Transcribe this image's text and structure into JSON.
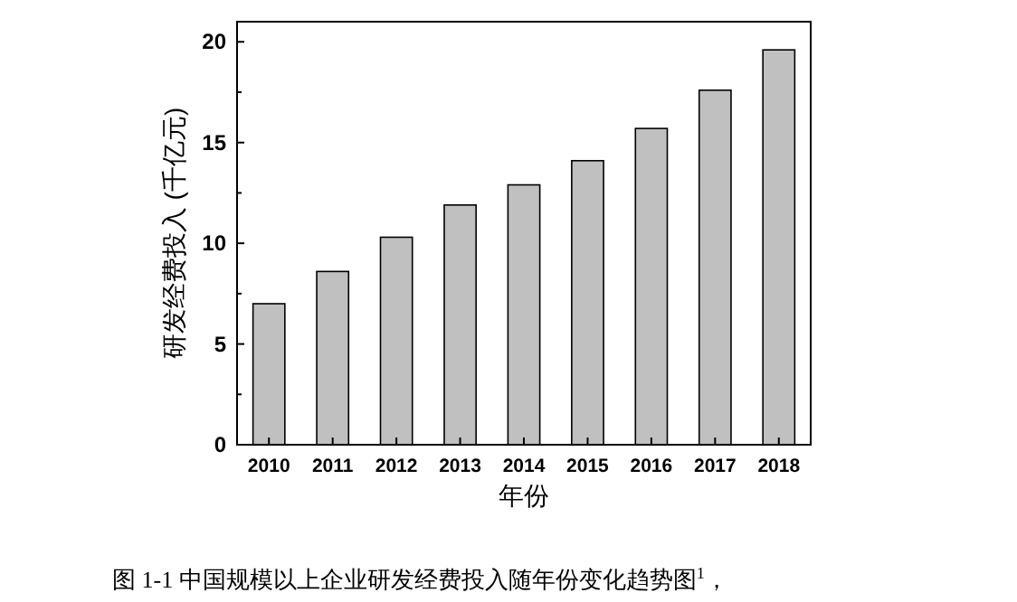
{
  "chart_data": {
    "type": "bar",
    "categories": [
      "2010",
      "2011",
      "2012",
      "2013",
      "2014",
      "2015",
      "2016",
      "2017",
      "2018"
    ],
    "values": [
      7.0,
      8.6,
      10.3,
      11.9,
      12.9,
      14.1,
      15.7,
      17.6,
      19.6
    ],
    "color": "#c0c0c0",
    "ylim": [
      0,
      21
    ],
    "yticks": [
      0,
      {
        "value": 2.5,
        "label": null
      },
      5,
      {
        "value": 7.5,
        "label": null
      },
      10,
      {
        "value": 12.5,
        "label": null
      },
      15,
      {
        "value": 17.5,
        "label": null
      },
      20
    ],
    "xlabel": "年份",
    "ylabel": "研发经费投入 (千亿元)",
    "annotations": [
      "图 1-1 中国规模以上企业研发经费投入随年份变化趋势图$^{1}$，"
    ]
  }
}
